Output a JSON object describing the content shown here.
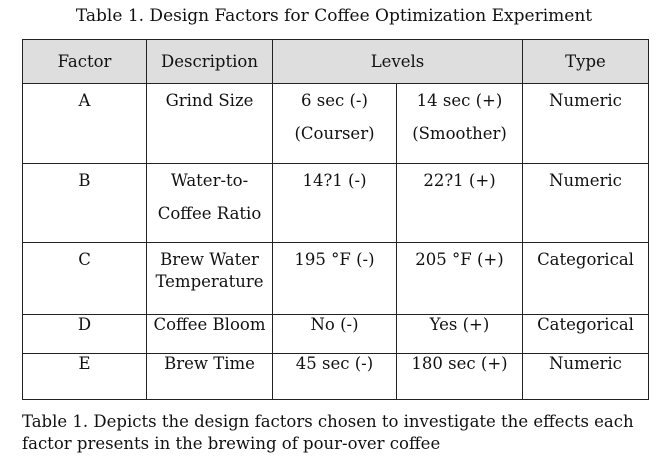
{
  "title": "Table 1. Design Factors for Coffee Optimization Experiment",
  "headers": {
    "factor": "Factor",
    "description": "Description",
    "levels": "Levels",
    "type": "Type"
  },
  "rows": [
    {
      "factor": "A",
      "description_line1": "Grind Size",
      "low_line1": "6 sec (-)",
      "low_line2": "(Courser)",
      "high_line1": "14 sec (+)",
      "high_line2": "(Smoother)",
      "type": "Numeric"
    },
    {
      "factor": "B",
      "description_line1": "Water-to-",
      "description_line2": "Coffee Ratio",
      "low_line1": "14?1 (-)",
      "high_line1": "22?1 (+)",
      "type": "Numeric"
    },
    {
      "factor": "C",
      "description_line1": "Brew Water",
      "description_line2": "Temperature",
      "low_line1": "195 °F (-)",
      "high_line1": "205 °F (+)",
      "type": "Categorical"
    },
    {
      "factor": "D",
      "description_line1": "Coffee Bloom",
      "low_line1": "No (-)",
      "high_line1": "Yes (+)",
      "type": "Categorical"
    },
    {
      "factor": "E",
      "description_line1": "Brew Time",
      "low_line1": "45 sec (-)",
      "high_line1": "180 sec (+)",
      "type": "Numeric"
    }
  ],
  "caption": "Table 1. Depicts the design factors chosen to investigate the effects each factor presents in the brewing of pour-over coffee"
}
